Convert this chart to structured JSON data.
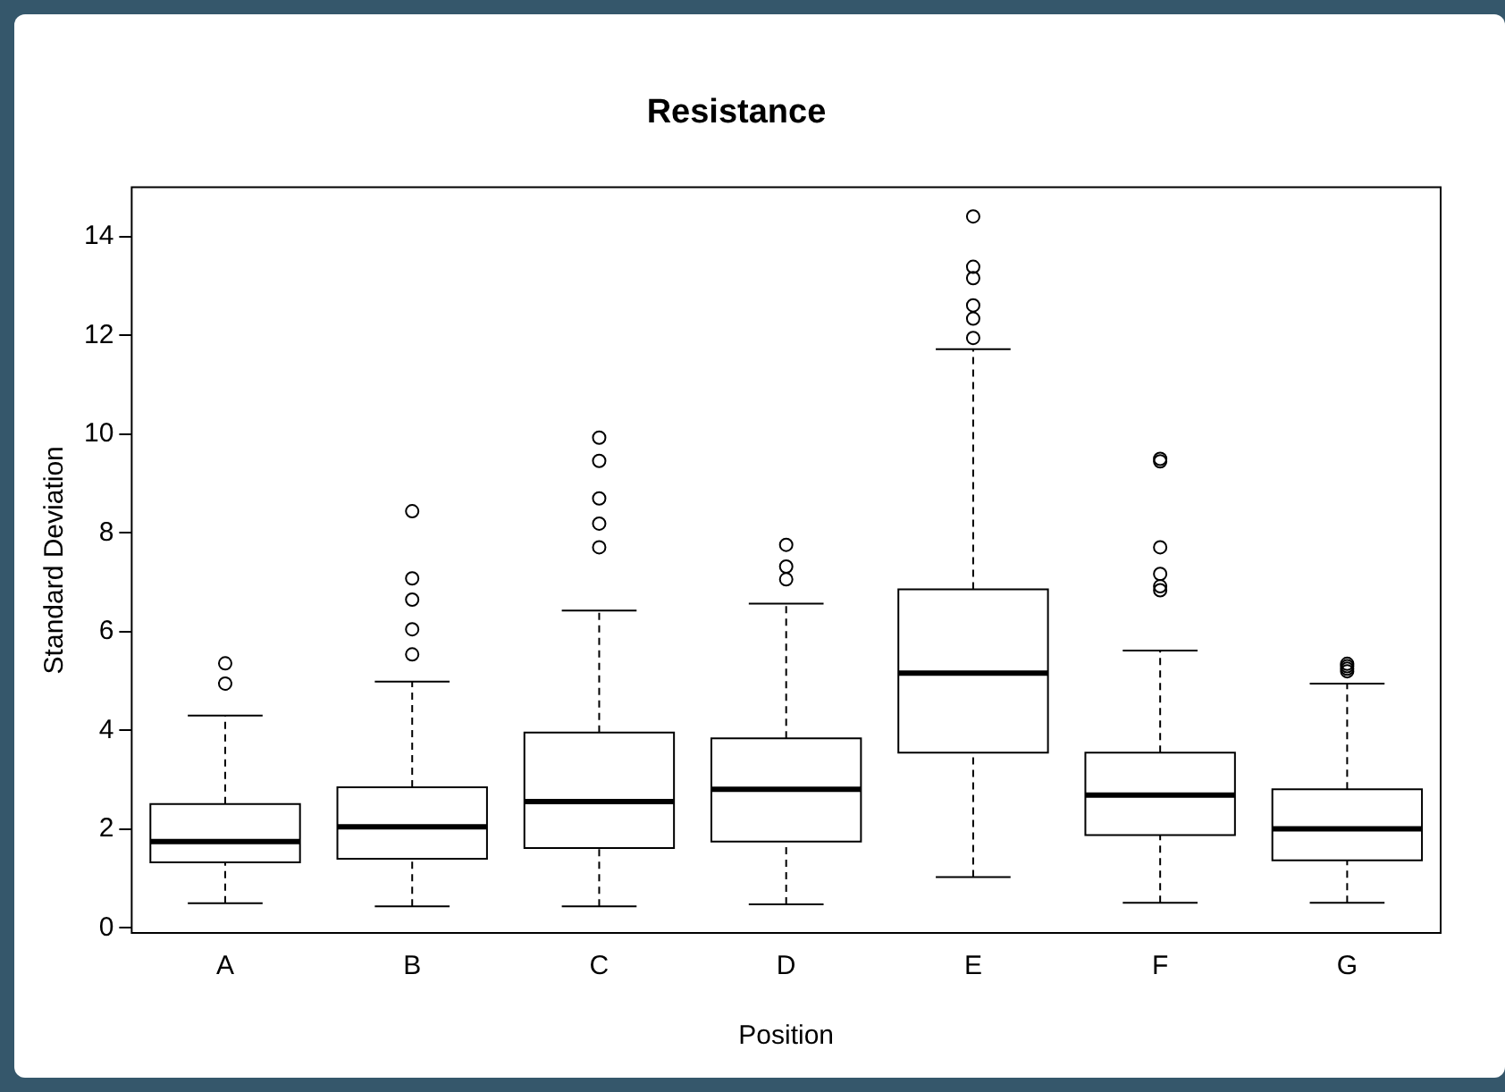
{
  "chart_data": {
    "type": "box",
    "title": "Resistance",
    "xlabel": "Position",
    "ylabel": "Standard Deviation",
    "categories": [
      "A",
      "B",
      "C",
      "D",
      "E",
      "F",
      "G"
    ],
    "ylim": [
      -0.1,
      15
    ],
    "yticks": [
      0,
      2,
      4,
      6,
      8,
      10,
      12,
      14
    ],
    "legend": false,
    "color": "#000000",
    "boxes": [
      {
        "low": 0.5,
        "q1": 1.33,
        "median": 1.75,
        "q3": 2.51,
        "high": 4.3,
        "outliers": [
          4.95,
          5.36
        ]
      },
      {
        "low": 0.44,
        "q1": 1.4,
        "median": 2.05,
        "q3": 2.85,
        "high": 4.99,
        "outliers": [
          5.54,
          6.05,
          6.65,
          7.08,
          8.44
        ]
      },
      {
        "low": 0.44,
        "q1": 1.62,
        "median": 2.56,
        "q3": 3.96,
        "high": 6.43,
        "outliers": [
          7.71,
          8.19,
          8.7,
          9.46,
          9.93
        ]
      },
      {
        "low": 0.48,
        "q1": 1.75,
        "median": 2.81,
        "q3": 3.84,
        "high": 6.57,
        "outliers": [
          7.06,
          7.32,
          7.76
        ]
      },
      {
        "low": 1.03,
        "q1": 3.55,
        "median": 5.16,
        "q3": 6.86,
        "high": 11.72,
        "outliers": [
          11.95,
          12.34,
          12.61,
          13.16,
          13.39,
          14.41
        ]
      },
      {
        "low": 0.51,
        "q1": 1.88,
        "median": 2.69,
        "q3": 3.55,
        "high": 5.62,
        "outliers": [
          6.84,
          6.92,
          7.17,
          7.71,
          9.45,
          9.5
        ]
      },
      {
        "low": 0.51,
        "q1": 1.37,
        "median": 2.01,
        "q3": 2.81,
        "high": 4.95,
        "outliers": [
          5.2,
          5.25,
          5.3,
          5.35
        ]
      }
    ]
  }
}
